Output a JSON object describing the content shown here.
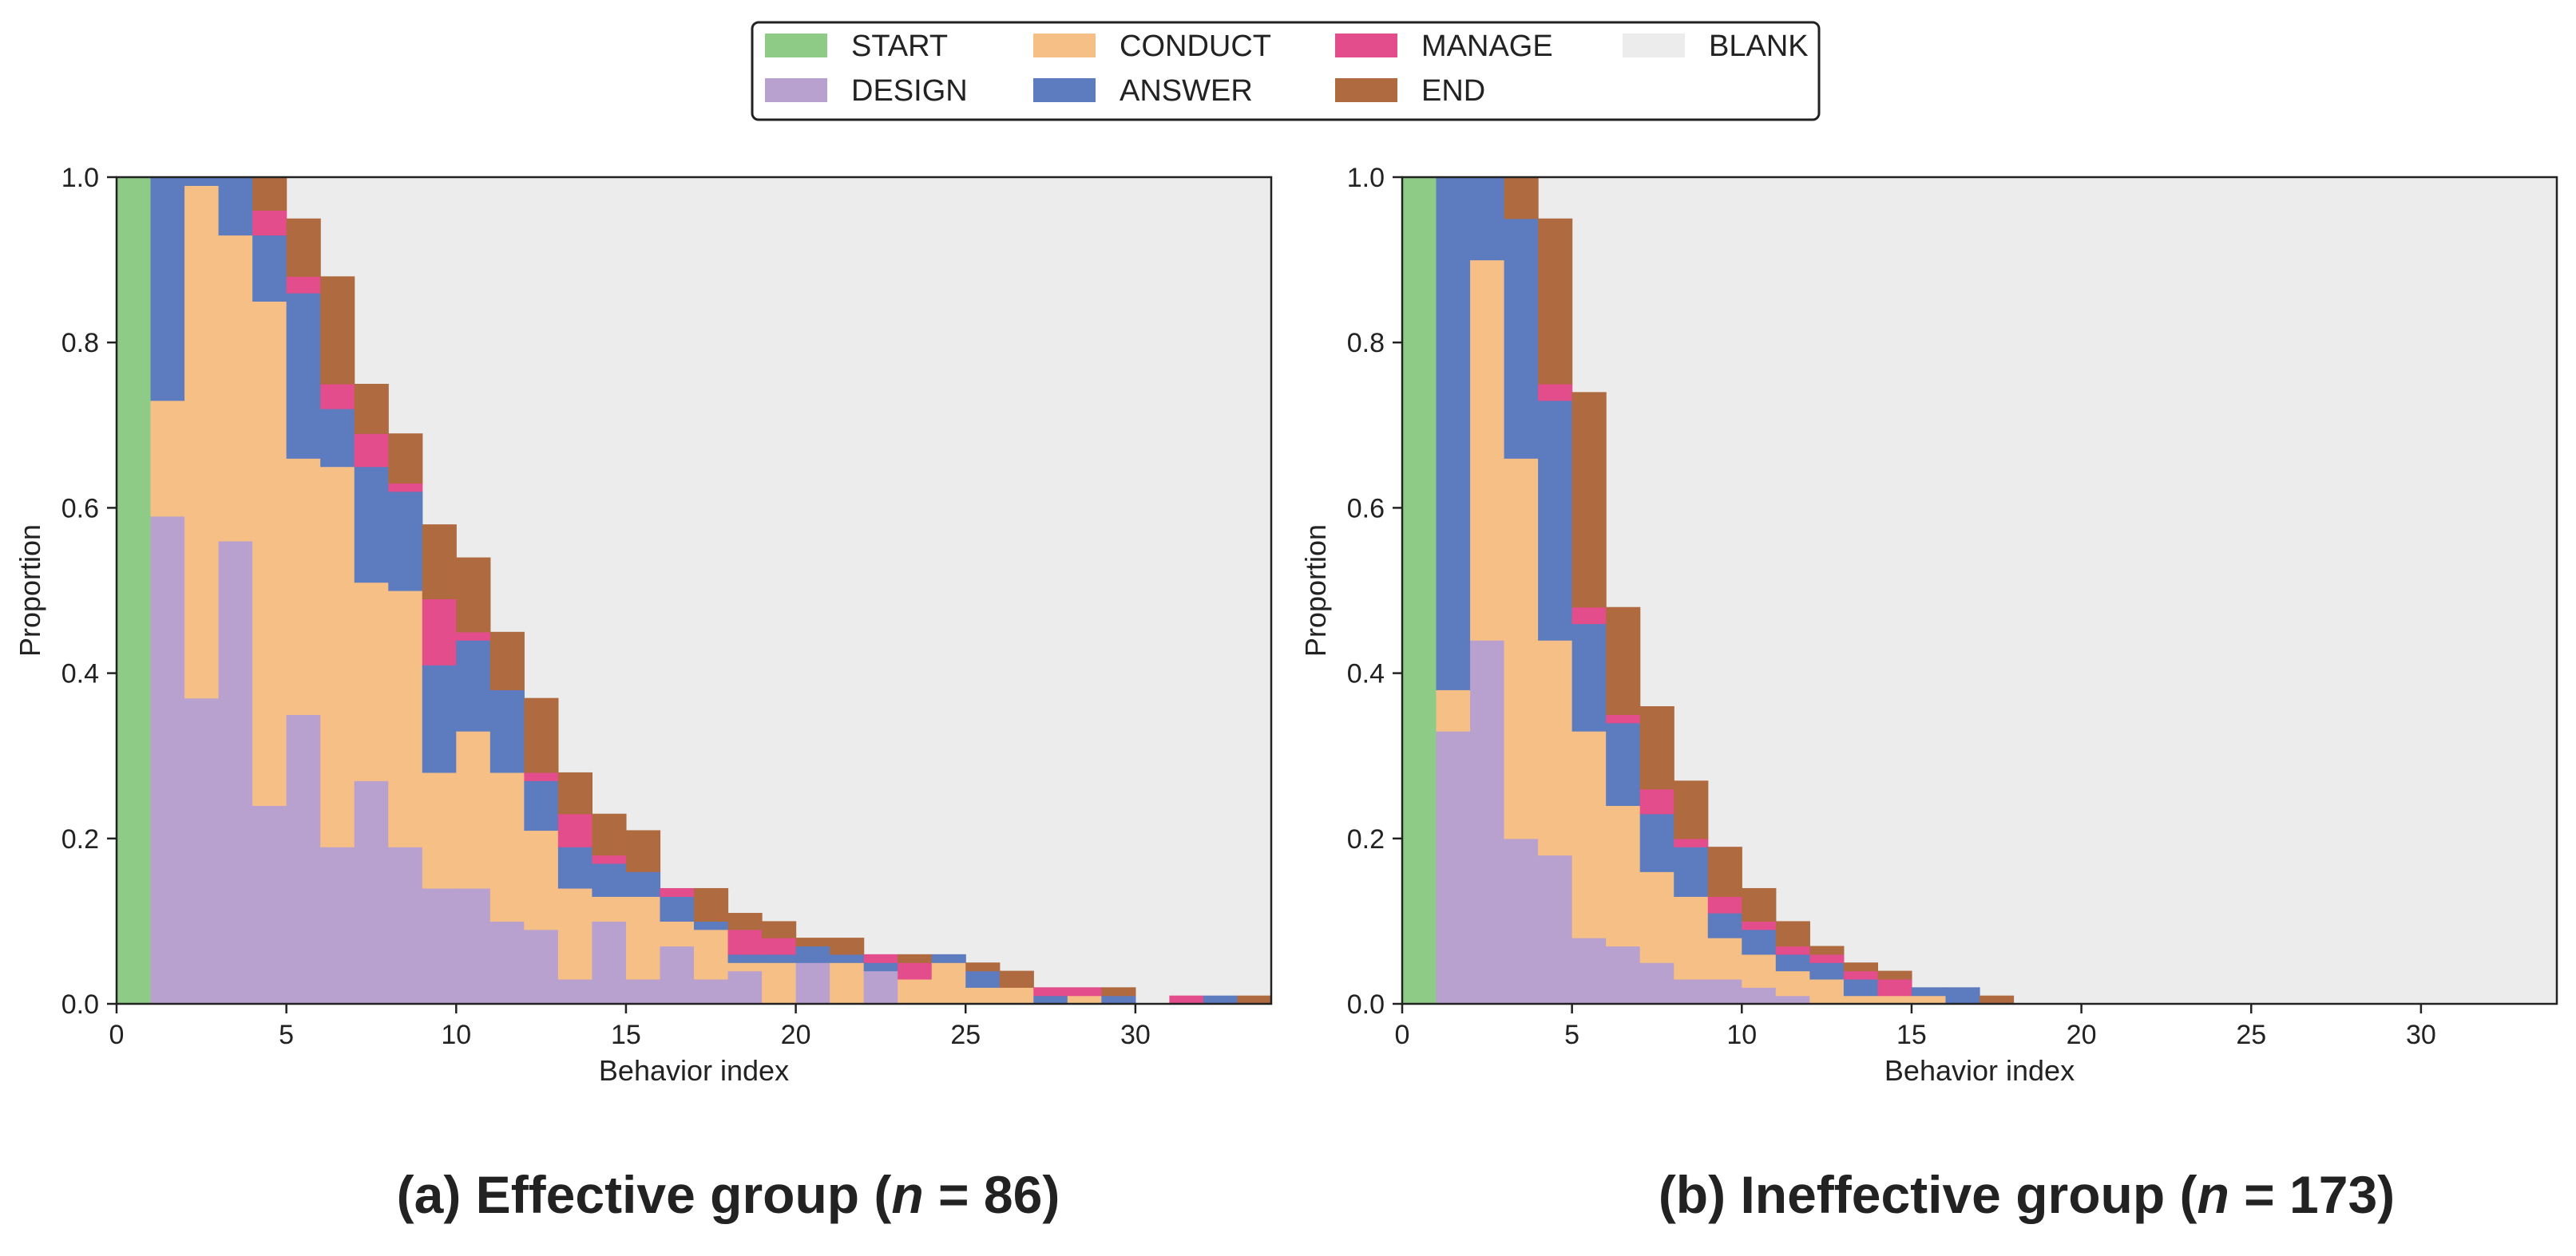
{
  "figure": {
    "legend": [
      {
        "key": "START",
        "label": "START",
        "color": "#8dcb86"
      },
      {
        "key": "DESIGN",
        "label": "DESIGN",
        "color": "#b8a1cf"
      },
      {
        "key": "CONDUCT",
        "label": "CONDUCT",
        "color": "#f6bf86"
      },
      {
        "key": "ANSWER",
        "label": "ANSWER",
        "color": "#5d7bbf"
      },
      {
        "key": "MANAGE",
        "label": "MANAGE",
        "color": "#e34d8b"
      },
      {
        "key": "END",
        "label": "END",
        "color": "#b06a3f"
      },
      {
        "key": "BLANK",
        "label": "BLANK",
        "color": "#ececec"
      }
    ]
  },
  "chart_data": [
    {
      "type": "area",
      "subtype": "stacked-step",
      "caption": {
        "prefix": "(a) Effective group (",
        "n_symbol": "n",
        "suffix": " = 86)"
      },
      "xlabel": "Behavior index",
      "ylabel": "Proportion",
      "xlim": [
        0,
        34
      ],
      "ylim": [
        0,
        1.0
      ],
      "xticks": [
        0,
        5,
        10,
        15,
        20,
        25,
        30
      ],
      "yticks": [
        0.0,
        0.2,
        0.4,
        0.6,
        0.8,
        1.0
      ],
      "ytick_labels": [
        "0.0",
        "0.2",
        "0.4",
        "0.6",
        "0.8",
        "1.0"
      ],
      "categories": [
        "START",
        "DESIGN",
        "CONDUCT",
        "ANSWER",
        "MANAGE",
        "END"
      ],
      "x": [
        0,
        1,
        2,
        3,
        4,
        5,
        6,
        7,
        8,
        9,
        10,
        11,
        12,
        13,
        14,
        15,
        16,
        17,
        18,
        19,
        20,
        21,
        22,
        23,
        24,
        25,
        26,
        27,
        28,
        29,
        30,
        31,
        32,
        33
      ],
      "series": [
        {
          "name": "START",
          "values": [
            1,
            0,
            0,
            0,
            0,
            0,
            0,
            0,
            0,
            0,
            0,
            0,
            0,
            0,
            0,
            0,
            0,
            0,
            0,
            0,
            0,
            0,
            0,
            0,
            0,
            0,
            0,
            0,
            0,
            0,
            0,
            0,
            0,
            0
          ]
        },
        {
          "name": "DESIGN",
          "values": [
            0,
            0.59,
            0.37,
            0.56,
            0.24,
            0.35,
            0.19,
            0.27,
            0.19,
            0.14,
            0.14,
            0.1,
            0.09,
            0.03,
            0.1,
            0.03,
            0.07,
            0.03,
            0.04,
            0.0,
            0.05,
            0.0,
            0.04,
            0.0,
            0.0,
            0.0,
            0.0,
            0.0,
            0.0,
            0.0,
            0.0,
            0.0,
            0.0,
            0.0
          ]
        },
        {
          "name": "CONDUCT",
          "values": [
            0,
            0.14,
            0.62,
            0.37,
            0.61,
            0.31,
            0.46,
            0.24,
            0.31,
            0.14,
            0.19,
            0.18,
            0.12,
            0.11,
            0.03,
            0.1,
            0.03,
            0.06,
            0.01,
            0.05,
            0.0,
            0.05,
            0.0,
            0.03,
            0.05,
            0.02,
            0.02,
            0.0,
            0.01,
            0.0,
            0.0,
            0.0,
            0.0,
            0.0
          ]
        },
        {
          "name": "ANSWER",
          "values": [
            0,
            0.27,
            0.01,
            0.07,
            0.08,
            0.2,
            0.07,
            0.14,
            0.12,
            0.13,
            0.11,
            0.1,
            0.06,
            0.05,
            0.04,
            0.03,
            0.03,
            0.01,
            0.01,
            0.01,
            0.02,
            0.01,
            0.01,
            0.0,
            0.01,
            0.02,
            0.0,
            0.01,
            0.0,
            0.01,
            0.0,
            0.0,
            0.01,
            0.0
          ]
        },
        {
          "name": "MANAGE",
          "values": [
            0,
            0.0,
            0.0,
            0.0,
            0.03,
            0.02,
            0.03,
            0.04,
            0.01,
            0.08,
            0.01,
            0.0,
            0.01,
            0.04,
            0.01,
            0.0,
            0.01,
            0.0,
            0.03,
            0.02,
            0.0,
            0.0,
            0.01,
            0.02,
            0.0,
            0.0,
            0.0,
            0.01,
            0.01,
            0.0,
            0.0,
            0.01,
            0.0,
            0.0
          ]
        },
        {
          "name": "END",
          "values": [
            0,
            0.0,
            0.0,
            0.0,
            0.04,
            0.07,
            0.13,
            0.06,
            0.06,
            0.09,
            0.09,
            0.07,
            0.09,
            0.05,
            0.05,
            0.05,
            0.0,
            0.04,
            0.02,
            0.02,
            0.01,
            0.02,
            0.0,
            0.01,
            0.0,
            0.01,
            0.02,
            0.0,
            0.0,
            0.01,
            0.0,
            0.0,
            0.0,
            0.01
          ]
        }
      ]
    },
    {
      "type": "area",
      "subtype": "stacked-step",
      "caption": {
        "prefix": "(b) Ineffective group (",
        "n_symbol": "n",
        "suffix": " = 173)"
      },
      "xlabel": "Behavior index",
      "ylabel": "Proportion",
      "xlim": [
        0,
        34
      ],
      "ylim": [
        0,
        1.0
      ],
      "xticks": [
        0,
        5,
        10,
        15,
        20,
        25,
        30
      ],
      "yticks": [
        0.0,
        0.2,
        0.4,
        0.6,
        0.8,
        1.0
      ],
      "ytick_labels": [
        "0.0",
        "0.2",
        "0.4",
        "0.6",
        "0.8",
        "1.0"
      ],
      "categories": [
        "START",
        "DESIGN",
        "CONDUCT",
        "ANSWER",
        "MANAGE",
        "END"
      ],
      "x": [
        0,
        1,
        2,
        3,
        4,
        5,
        6,
        7,
        8,
        9,
        10,
        11,
        12,
        13,
        14,
        15,
        16,
        17,
        18,
        19,
        20,
        21,
        22,
        23,
        24,
        25,
        26,
        27,
        28,
        29,
        30,
        31,
        32,
        33
      ],
      "series": [
        {
          "name": "START",
          "values": [
            1,
            0,
            0,
            0,
            0,
            0,
            0,
            0,
            0,
            0,
            0,
            0,
            0,
            0,
            0,
            0,
            0,
            0,
            0,
            0,
            0,
            0,
            0,
            0,
            0,
            0,
            0,
            0,
            0,
            0,
            0,
            0,
            0,
            0
          ]
        },
        {
          "name": "DESIGN",
          "values": [
            0,
            0.33,
            0.44,
            0.2,
            0.18,
            0.08,
            0.07,
            0.05,
            0.03,
            0.03,
            0.02,
            0.01,
            0.0,
            0.0,
            0.0,
            0.0,
            0.0,
            0.0,
            0.0,
            0.0,
            0.0,
            0.0,
            0.0,
            0.0,
            0.0,
            0.0,
            0.0,
            0.0,
            0.0,
            0.0,
            0.0,
            0.0,
            0.0,
            0.0
          ]
        },
        {
          "name": "CONDUCT",
          "values": [
            0,
            0.05,
            0.46,
            0.46,
            0.26,
            0.25,
            0.17,
            0.11,
            0.1,
            0.05,
            0.04,
            0.03,
            0.03,
            0.01,
            0.01,
            0.01,
            0.0,
            0.0,
            0.0,
            0.0,
            0.0,
            0.0,
            0.0,
            0.0,
            0.0,
            0.0,
            0.0,
            0.0,
            0.0,
            0.0,
            0.0,
            0.0,
            0.0,
            0.0
          ]
        },
        {
          "name": "ANSWER",
          "values": [
            0,
            0.62,
            0.1,
            0.29,
            0.29,
            0.13,
            0.1,
            0.07,
            0.06,
            0.03,
            0.03,
            0.02,
            0.02,
            0.02,
            0.0,
            0.01,
            0.02,
            0.0,
            0.0,
            0.0,
            0.0,
            0.0,
            0.0,
            0.0,
            0.0,
            0.0,
            0.0,
            0.0,
            0.0,
            0.0,
            0.0,
            0.0,
            0.0,
            0.0
          ]
        },
        {
          "name": "MANAGE",
          "values": [
            0,
            0.0,
            0.0,
            0.0,
            0.02,
            0.02,
            0.01,
            0.03,
            0.01,
            0.02,
            0.01,
            0.01,
            0.01,
            0.01,
            0.02,
            0.0,
            0.0,
            0.0,
            0.0,
            0.0,
            0.0,
            0.0,
            0.0,
            0.0,
            0.0,
            0.0,
            0.0,
            0.0,
            0.0,
            0.0,
            0.0,
            0.0,
            0.0,
            0.0
          ]
        },
        {
          "name": "END",
          "values": [
            0,
            0.0,
            0.0,
            0.05,
            0.2,
            0.26,
            0.13,
            0.1,
            0.07,
            0.06,
            0.04,
            0.03,
            0.01,
            0.01,
            0.01,
            0.0,
            0.0,
            0.01,
            0.0,
            0.0,
            0.0,
            0.0,
            0.0,
            0.0,
            0.0,
            0.0,
            0.0,
            0.0,
            0.0,
            0.0,
            0.0,
            0.0,
            0.0,
            0.0
          ]
        }
      ]
    }
  ]
}
